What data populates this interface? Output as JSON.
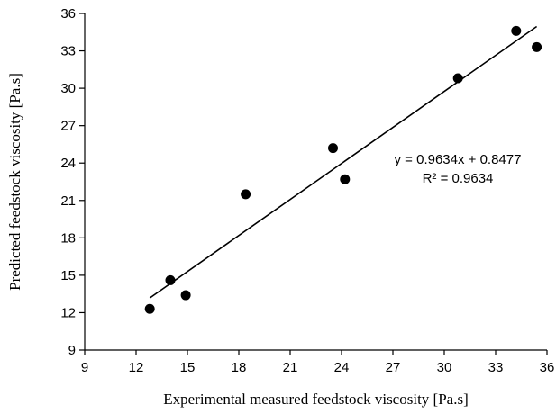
{
  "chart_data": {
    "type": "scatter",
    "xlabel": "Experimental measured feedstock viscosity [Pa.s]",
    "ylabel": "Predicted feedstock viscosity [Pa.s]",
    "xlim": [
      9,
      36
    ],
    "ylim": [
      9,
      36
    ],
    "x_ticks": [
      "9",
      "12",
      "15",
      "18",
      "21",
      "24",
      "27",
      "30",
      "33",
      "36"
    ],
    "y_ticks": [
      "9",
      "12",
      "15",
      "18",
      "21",
      "24",
      "27",
      "30",
      "33",
      "36"
    ],
    "x_tick_values": [
      9,
      12,
      15,
      18,
      21,
      24,
      27,
      30,
      33,
      36
    ],
    "y_tick_values": [
      9,
      12,
      15,
      18,
      21,
      24,
      27,
      30,
      33,
      36
    ],
    "grid": false,
    "legend": "none",
    "marker_color": "#000000",
    "points": [
      {
        "x": 12.8,
        "y": 12.3
      },
      {
        "x": 14.0,
        "y": 14.6
      },
      {
        "x": 14.9,
        "y": 13.4
      },
      {
        "x": 18.4,
        "y": 21.5
      },
      {
        "x": 23.5,
        "y": 25.2
      },
      {
        "x": 24.2,
        "y": 22.7
      },
      {
        "x": 30.8,
        "y": 30.8
      },
      {
        "x": 34.2,
        "y": 34.6
      },
      {
        "x": 35.4,
        "y": 33.3
      }
    ],
    "trendline": {
      "slope": 0.9634,
      "intercept": 0.8477,
      "x_range": [
        12.8,
        35.4
      ],
      "equation_label": "y = 0.9634x + 0.8477",
      "r2_label": "R² = 0.9634"
    }
  }
}
